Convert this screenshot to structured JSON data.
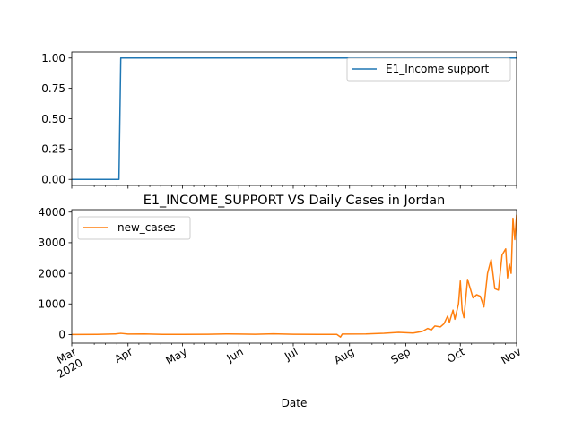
{
  "chart_data": [
    {
      "type": "line",
      "title": "",
      "xlabel": "",
      "ylabel": "",
      "ylim": [
        -0.05,
        1.05
      ],
      "yticks": [
        0.0,
        0.25,
        0.5,
        0.75,
        1.0
      ],
      "ytick_labels": [
        "0.00",
        "0.25",
        "0.50",
        "0.75",
        "1.00"
      ],
      "legend": {
        "placement": "upper right"
      },
      "series": [
        {
          "name": "E1_Income support",
          "color": "#1f77b4",
          "points": [
            {
              "x": "2020-03-01",
              "y": 0
            },
            {
              "x": "2020-03-27",
              "y": 0
            },
            {
              "x": "2020-03-28",
              "y": 1
            },
            {
              "x": "2020-11-01",
              "y": 1
            }
          ]
        }
      ]
    },
    {
      "type": "line",
      "title": "E1_INCOME_SUPPORT VS Daily Cases in Jordan",
      "xlabel": "Date",
      "ylabel": "",
      "ylim": [
        -280,
        4080
      ],
      "yticks": [
        0,
        1000,
        2000,
        3000,
        4000
      ],
      "ytick_labels": [
        "0",
        "1000",
        "2000",
        "3000",
        "4000"
      ],
      "xlim": [
        "2020-03-01",
        "2020-11-01"
      ],
      "xticks": [
        "2020-03-01",
        "2020-04-01",
        "2020-05-01",
        "2020-06-01",
        "2020-07-01",
        "2020-08-01",
        "2020-09-01",
        "2020-10-01",
        "2020-11-01"
      ],
      "xtick_labels": [
        "Mar\n2020",
        "Apr",
        "May",
        "Jun",
        "Jul",
        "Aug",
        "Sep",
        "Oct",
        "Nov"
      ],
      "legend": {
        "placement": "upper left"
      },
      "series": [
        {
          "name": "new_cases",
          "color": "#ff7f0e",
          "points": [
            {
              "x": "2020-03-01",
              "y": 0
            },
            {
              "x": "2020-03-15",
              "y": 5
            },
            {
              "x": "2020-03-25",
              "y": 20
            },
            {
              "x": "2020-03-28",
              "y": 40
            },
            {
              "x": "2020-04-01",
              "y": 15
            },
            {
              "x": "2020-04-10",
              "y": 20
            },
            {
              "x": "2020-04-20",
              "y": 5
            },
            {
              "x": "2020-05-01",
              "y": 5
            },
            {
              "x": "2020-05-15",
              "y": 10
            },
            {
              "x": "2020-05-25",
              "y": 20
            },
            {
              "x": "2020-06-01",
              "y": 15
            },
            {
              "x": "2020-06-10",
              "y": 10
            },
            {
              "x": "2020-06-20",
              "y": 25
            },
            {
              "x": "2020-07-01",
              "y": 10
            },
            {
              "x": "2020-07-15",
              "y": 5
            },
            {
              "x": "2020-07-25",
              "y": 5
            },
            {
              "x": "2020-07-27",
              "y": -80
            },
            {
              "x": "2020-07-28",
              "y": 15
            },
            {
              "x": "2020-08-10",
              "y": 20
            },
            {
              "x": "2020-08-20",
              "y": 40
            },
            {
              "x": "2020-08-28",
              "y": 70
            },
            {
              "x": "2020-09-05",
              "y": 50
            },
            {
              "x": "2020-09-10",
              "y": 100
            },
            {
              "x": "2020-09-13",
              "y": 200
            },
            {
              "x": "2020-09-15",
              "y": 150
            },
            {
              "x": "2020-09-17",
              "y": 280
            },
            {
              "x": "2020-09-20",
              "y": 250
            },
            {
              "x": "2020-09-22",
              "y": 350
            },
            {
              "x": "2020-09-24",
              "y": 600
            },
            {
              "x": "2020-09-25",
              "y": 400
            },
            {
              "x": "2020-09-27",
              "y": 800
            },
            {
              "x": "2020-09-28",
              "y": 500
            },
            {
              "x": "2020-09-30",
              "y": 1000
            },
            {
              "x": "2020-10-01",
              "y": 1750
            },
            {
              "x": "2020-10-02",
              "y": 800
            },
            {
              "x": "2020-10-03",
              "y": 550
            },
            {
              "x": "2020-10-05",
              "y": 1800
            },
            {
              "x": "2020-10-06",
              "y": 1600
            },
            {
              "x": "2020-10-08",
              "y": 1200
            },
            {
              "x": "2020-10-10",
              "y": 1300
            },
            {
              "x": "2020-10-12",
              "y": 1250
            },
            {
              "x": "2020-10-14",
              "y": 900
            },
            {
              "x": "2020-10-16",
              "y": 2000
            },
            {
              "x": "2020-10-18",
              "y": 2450
            },
            {
              "x": "2020-10-20",
              "y": 1500
            },
            {
              "x": "2020-10-22",
              "y": 1450
            },
            {
              "x": "2020-10-24",
              "y": 2600
            },
            {
              "x": "2020-10-26",
              "y": 2800
            },
            {
              "x": "2020-10-27",
              "y": 1850
            },
            {
              "x": "2020-10-28",
              "y": 2300
            },
            {
              "x": "2020-10-29",
              "y": 2000
            },
            {
              "x": "2020-10-30",
              "y": 3800
            },
            {
              "x": "2020-10-31",
              "y": 3100
            },
            {
              "x": "2020-11-01",
              "y": 3900
            },
            {
              "x": "2020-11-02",
              "y": 3300
            }
          ]
        }
      ]
    }
  ]
}
